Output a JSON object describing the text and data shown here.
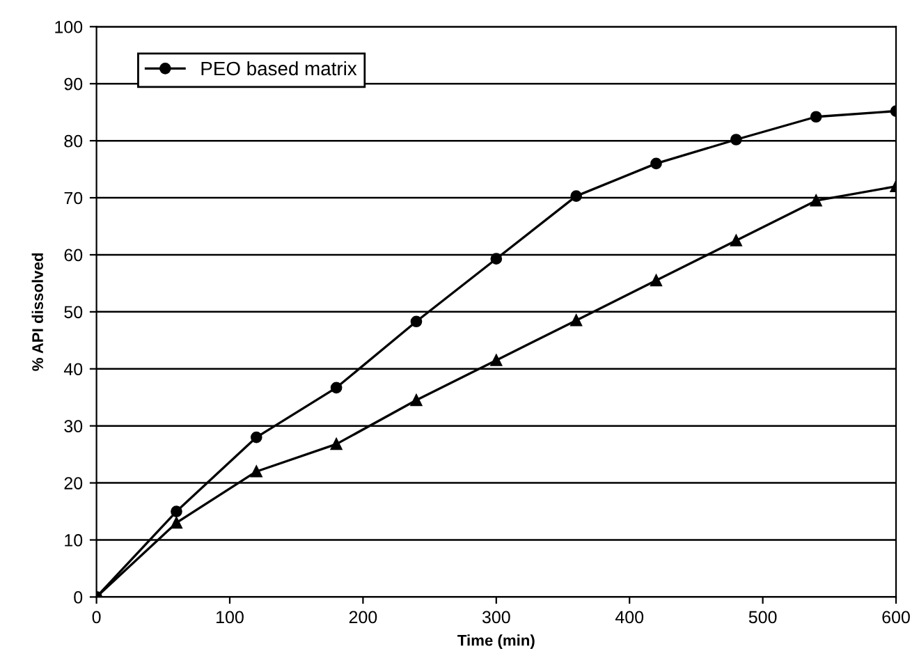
{
  "chart_data": {
    "type": "line",
    "xlabel": "Time (min)",
    "ylabel": "% API dissolved",
    "xlim": [
      0,
      600
    ],
    "ylim": [
      0,
      100
    ],
    "xticks": [
      0,
      100,
      200,
      300,
      400,
      500,
      600
    ],
    "yticks": [
      0,
      10,
      20,
      30,
      40,
      50,
      60,
      70,
      80,
      90,
      100
    ],
    "grid": "y",
    "legend": "top left",
    "line_style": "solid",
    "x": [
      0,
      60,
      120,
      180,
      240,
      300,
      360,
      420,
      480,
      540,
      600
    ],
    "series": [
      {
        "name": "PEO based matrix",
        "color": "#000000",
        "marker": "circle",
        "values": [
          0,
          15,
          28,
          36.7,
          48.3,
          59.3,
          70.3,
          76,
          80.2,
          84.2,
          85.2
        ]
      },
      {
        "color": "#000000",
        "marker": "triangle",
        "values": [
          0,
          13,
          22,
          26.8,
          34.5,
          41.5,
          48.5,
          55.5,
          62.5,
          69.5,
          72
        ]
      }
    ]
  }
}
